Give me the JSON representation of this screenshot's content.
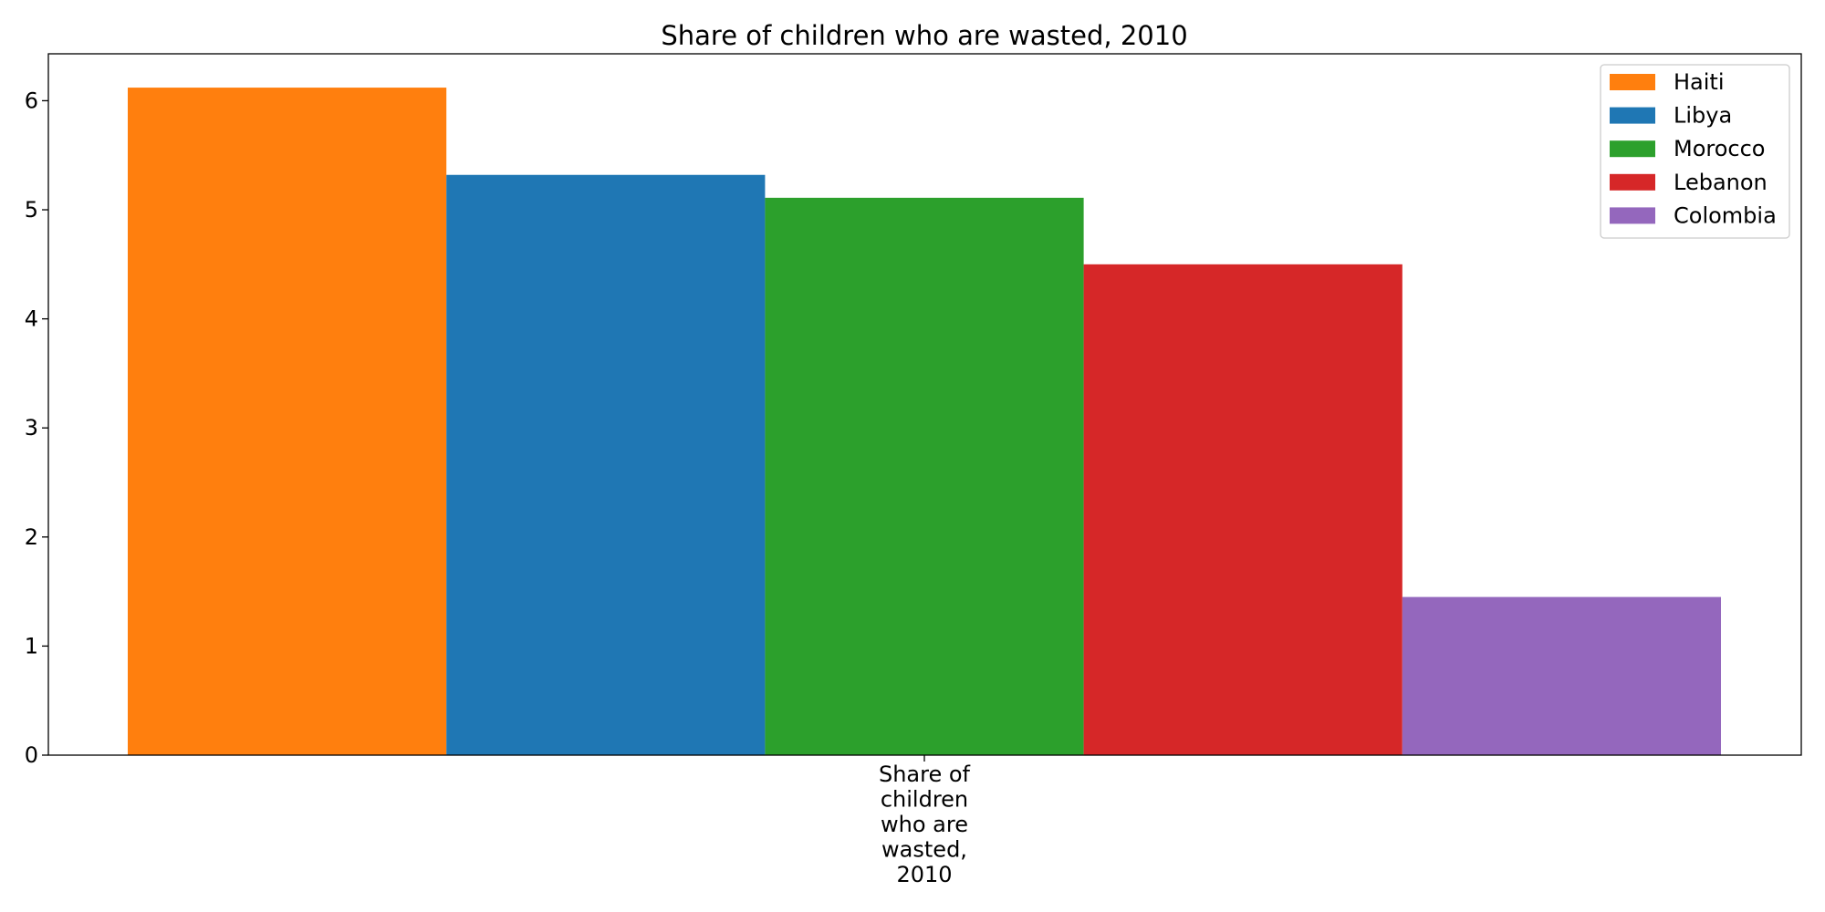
{
  "chart_data": {
    "type": "bar",
    "title": "Share of children who are wasted, 2010",
    "xlabel": "",
    "ylabel": "",
    "categories": [
      "Share of children who are wasted, 2010"
    ],
    "category_label_lines": [
      "Share of",
      "children",
      "who are",
      "wasted,",
      "2010"
    ],
    "series": [
      {
        "name": "Haiti",
        "values": [
          6.12
        ],
        "color": "#ff7f0e"
      },
      {
        "name": "Libya",
        "values": [
          5.32
        ],
        "color": "#1f77b4"
      },
      {
        "name": "Morocco",
        "values": [
          5.11
        ],
        "color": "#2ca02c"
      },
      {
        "name": "Lebanon",
        "values": [
          4.5
        ],
        "color": "#d62728"
      },
      {
        "name": "Colombia",
        "values": [
          1.45
        ],
        "color": "#9467bd"
      }
    ],
    "ylim": [
      0,
      6.43
    ],
    "yticks": [
      0,
      1,
      2,
      3,
      4,
      5,
      6
    ],
    "grid": false,
    "legend": "top-right"
  }
}
